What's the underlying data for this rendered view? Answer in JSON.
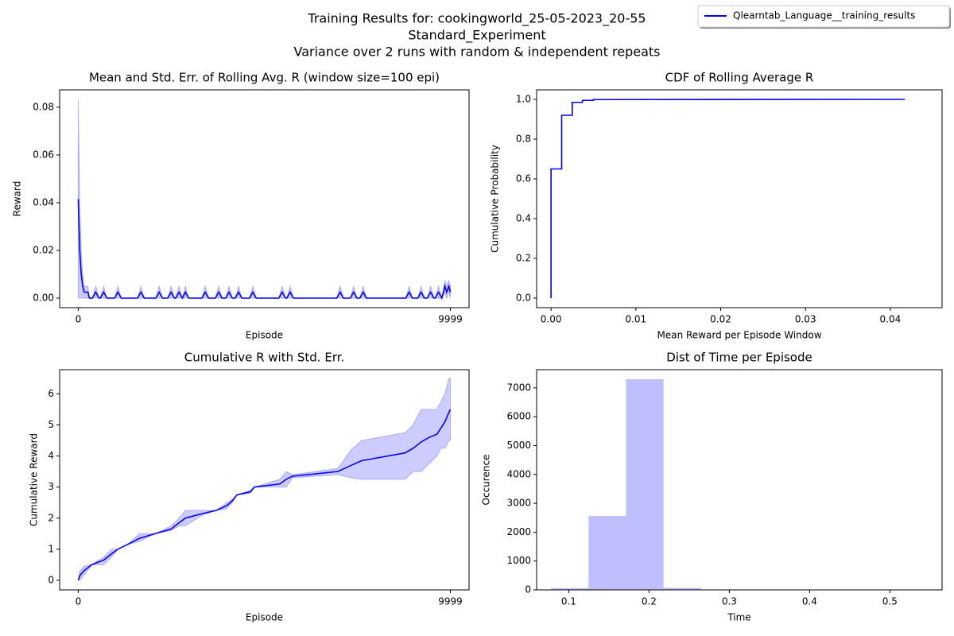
{
  "figure": {
    "title_lines": [
      "Training Results for: cookingworld_25-05-2023_20-55",
      "Standard_Experiment",
      "Variance over 2 runs with random & independent repeats"
    ],
    "legend": [
      "Qlearntab_Language__training_results"
    ],
    "legend_color": "#0000ff",
    "legend_loc": "upper right"
  },
  "chart_data": [
    {
      "type": "line",
      "title": "Mean and Std. Err. of Rolling Avg. R (window size=100 epi)",
      "x_label": "Episode",
      "y_label": "Reward",
      "xlim": [
        -500,
        10500
      ],
      "ylim": [
        -0.004,
        0.0873
      ],
      "xticks": [
        0,
        9999
      ],
      "yticks": [
        {
          "value": 0,
          "label": "0.00"
        },
        {
          "value": 0.02,
          "label": "0.02"
        },
        {
          "value": 0.04,
          "label": "0.04"
        },
        {
          "value": 0.06,
          "label": "0.06"
        },
        {
          "value": 0.08,
          "label": "0.08"
        }
      ],
      "x": [
        0,
        40,
        80,
        120,
        160,
        260,
        300,
        379,
        469,
        559,
        592,
        682,
        772,
        976,
        1066,
        1156,
        1594,
        1684,
        1774,
        2085,
        2175,
        2265,
        2405,
        2495,
        2585,
        2618,
        2708,
        2798,
        2878,
        2968,
        3321,
        3411,
        3501,
        3684,
        3774,
        3864,
        3961,
        4051,
        4141,
        4217,
        4307,
        4397,
        4601,
        4691,
        4781,
        5389,
        5479,
        5569,
        5603,
        5693,
        5783,
        6946,
        7036,
        7126,
        7309,
        7399,
        7489,
        7565,
        7655,
        7745,
        8801,
        8891,
        8981,
        9121,
        9211,
        9301,
        9377,
        9467,
        9557,
        9590,
        9680,
        9770,
        9851,
        9900,
        9957,
        9999
      ],
      "series": [
        {
          "color": "#0000ff",
          "values": [
            0.0415,
            0.02,
            0.01,
            0.005,
            0.0025,
            0.0025,
            0,
            0,
            0.0025,
            0,
            0,
            0.0025,
            0,
            0,
            0.0025,
            0,
            0,
            0.0025,
            0,
            0,
            0.0025,
            0,
            0,
            0.0025,
            0,
            0,
            0.0025,
            0,
            0.0025,
            0,
            0,
            0.0025,
            0,
            0,
            0.0025,
            0,
            0,
            0.0025,
            0,
            0,
            0.0025,
            0,
            0,
            0.0025,
            0,
            0,
            0.0025,
            0,
            0,
            0.0025,
            0,
            0,
            0.0025,
            0,
            0,
            0.0025,
            0,
            0,
            0.0025,
            0,
            0,
            0.0025,
            0,
            0,
            0.0025,
            0,
            0,
            0.0025,
            0,
            0,
            0.0025,
            0,
            0.005,
            0.0025,
            0.005,
            0.0025
          ],
          "upper": [
            0.083,
            0.04,
            0.02,
            0.01,
            0.005,
            0.005,
            0,
            0,
            0.005,
            0,
            0,
            0.005,
            0,
            0,
            0.005,
            0,
            0,
            0.005,
            0,
            0,
            0.005,
            0,
            0,
            0.005,
            0,
            0,
            0.005,
            0,
            0.005,
            0,
            0,
            0.005,
            0,
            0,
            0.005,
            0,
            0,
            0.005,
            0,
            0,
            0.005,
            0,
            0,
            0.005,
            0,
            0,
            0.005,
            0,
            0,
            0.005,
            0,
            0,
            0.005,
            0,
            0,
            0.005,
            0,
            0,
            0.005,
            0,
            0,
            0.005,
            0,
            0,
            0.005,
            0,
            0,
            0.005,
            0,
            0,
            0.005,
            0,
            0.0075,
            0.005,
            0.0075,
            0.005
          ],
          "lower": [
            0,
            0,
            0,
            0,
            0,
            0,
            0,
            0,
            0,
            0,
            0,
            0,
            0,
            0,
            0,
            0,
            0,
            0,
            0,
            0,
            0,
            0,
            0,
            0,
            0,
            0,
            0,
            0,
            0,
            0,
            0,
            0,
            0,
            0,
            0,
            0,
            0,
            0,
            0,
            0,
            0,
            0,
            0,
            0,
            0,
            0,
            0,
            0,
            0,
            0,
            0,
            0,
            0,
            0,
            0,
            0,
            0,
            0,
            0,
            0,
            0,
            0,
            0,
            0,
            0,
            0,
            0,
            0,
            0,
            0,
            0,
            0,
            0.0025,
            0,
            0.0025,
            0
          ]
        }
      ]
    },
    {
      "type": "line",
      "title": "CDF of Rolling Average R",
      "x_label": "Mean Reward per Episode Window",
      "y_label": "Cumulative Probability",
      "xlim": [
        -0.0017,
        0.0461
      ],
      "ylim": [
        -0.048,
        1.048
      ],
      "xticks": [
        {
          "value": 0,
          "label": "0.00"
        },
        {
          "value": 0.01,
          "label": "0.01"
        },
        {
          "value": 0.02,
          "label": "0.02"
        },
        {
          "value": 0.03,
          "label": "0.03"
        },
        {
          "value": 0.04,
          "label": "0.04"
        }
      ],
      "yticks": [
        {
          "value": 0,
          "label": "0.0"
        },
        {
          "value": 0.2,
          "label": "0.2"
        },
        {
          "value": 0.4,
          "label": "0.4"
        },
        {
          "value": 0.6,
          "label": "0.6"
        },
        {
          "value": 0.8,
          "label": "0.8"
        },
        {
          "value": 1,
          "label": "1.0"
        }
      ],
      "x": [
        0,
        0,
        0.00125,
        0.00125,
        0.0025,
        0.0025,
        0.0037,
        0.0037,
        0.005,
        0.005,
        0.0417
      ],
      "series": [
        {
          "color": "#0000ff",
          "values": [
            0,
            0.65,
            0.65,
            0.92,
            0.92,
            0.985,
            0.985,
            0.995,
            0.995,
            0.999,
            1.0
          ]
        }
      ]
    },
    {
      "type": "line",
      "title": "Cumulative R with Std. Err.",
      "x_label": "Episode",
      "y_label": "Cumulative Reward",
      "xlim": [
        -500,
        10500
      ],
      "ylim": [
        -0.31,
        6.78
      ],
      "xticks": [
        0,
        9999
      ],
      "yticks": [
        0,
        1,
        2,
        3,
        4,
        5,
        6
      ],
      "x": [
        0,
        43,
        149,
        362,
        682,
        895,
        1066,
        1322,
        1642,
        2068,
        2495,
        2708,
        2878,
        3347,
        3710,
        3987,
        4136,
        4264,
        4627,
        4733,
        5415,
        5586,
        5757,
        6972,
        7335,
        7612,
        8784,
        8998,
        9211,
        9424,
        9637,
        9744,
        9851,
        9957,
        9999
      ],
      "series": [
        {
          "color": "#0000ff",
          "values": [
            0,
            0.15,
            0.3,
            0.5,
            0.65,
            0.85,
            1.0,
            1.15,
            1.35,
            1.5,
            1.65,
            1.85,
            2.0,
            2.15,
            2.25,
            2.4,
            2.55,
            2.75,
            2.85,
            3.0,
            3.1,
            3.25,
            3.35,
            3.5,
            3.7,
            3.85,
            4.1,
            4.25,
            4.45,
            4.6,
            4.7,
            4.9,
            5.1,
            5.4,
            5.5
          ],
          "upper": [
            0,
            0.3,
            0.45,
            0.5,
            0.75,
            1.0,
            1.0,
            1.15,
            1.5,
            1.5,
            1.75,
            2.0,
            2.25,
            2.25,
            2.25,
            2.5,
            2.6,
            2.75,
            2.9,
            3.0,
            3.25,
            3.5,
            3.4,
            3.6,
            4.2,
            4.5,
            4.75,
            5.0,
            5.5,
            5.5,
            5.5,
            5.75,
            6.0,
            6.5,
            6.5
          ],
          "lower": [
            0,
            0,
            0.15,
            0.5,
            0.5,
            0.75,
            1.0,
            1.15,
            1.25,
            1.5,
            1.6,
            1.75,
            1.75,
            2.1,
            2.25,
            2.3,
            2.5,
            2.75,
            2.8,
            3.0,
            3.0,
            3.0,
            3.3,
            3.4,
            3.3,
            3.25,
            3.25,
            3.5,
            3.5,
            3.75,
            4.0,
            4.25,
            4.25,
            4.5,
            4.5
          ]
        }
      ]
    },
    {
      "type": "histogram",
      "title": "Dist of Time per Episode",
      "x_label": "Time",
      "y_label": "Occurence",
      "xlim": [
        0.06,
        0.565
      ],
      "ylim": [
        0,
        7630
      ],
      "xticks": [
        0.1,
        0.2,
        0.3,
        0.4,
        0.5
      ],
      "yticks": [
        0,
        1000,
        2000,
        3000,
        4000,
        5000,
        6000,
        7000
      ],
      "bins": [
        0.078,
        0.1247,
        0.1714,
        0.2181,
        0.2648,
        0.3115,
        0.3582,
        0.4049,
        0.4516,
        0.4983,
        0.545
      ],
      "values": [
        60,
        2560,
        7300,
        70,
        5,
        2,
        1,
        1,
        0,
        1
      ],
      "color": "#bfbfff"
    }
  ]
}
